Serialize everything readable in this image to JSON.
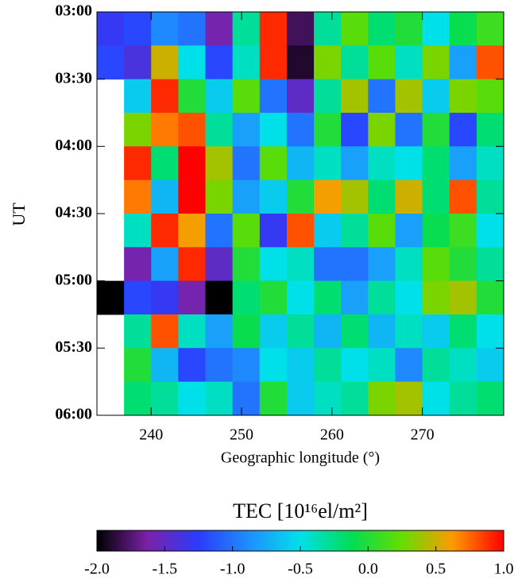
{
  "chart_data": {
    "type": "heatmap",
    "xlabel": "Geographic longitude (°)",
    "ylabel": "UT",
    "colorbar_label": "TEC [10¹⁶el/m²]",
    "xlim": [
      234,
      279
    ],
    "xticks": [
      240,
      250,
      260,
      270
    ],
    "ylim": [
      3,
      6
    ],
    "y_reversed": true,
    "yticks": [
      {
        "value": 3,
        "label": "03:00"
      },
      {
        "value": 3.5,
        "label": "03:30"
      },
      {
        "value": 4,
        "label": "04:00"
      },
      {
        "value": 4.5,
        "label": "04:30"
      },
      {
        "value": 5,
        "label": "05:00"
      },
      {
        "value": 5.5,
        "label": "05:30"
      },
      {
        "value": 6,
        "label": "06:00"
      }
    ],
    "zlim": [
      -2,
      1
    ],
    "zticks": [
      {
        "value": -2,
        "label": "-2.0"
      },
      {
        "value": -1.5,
        "label": "-1.5"
      },
      {
        "value": -1,
        "label": "-1.0"
      },
      {
        "value": -0.5,
        "label": "-0.5"
      },
      {
        "value": 0,
        "label": "0.0"
      },
      {
        "value": 0.5,
        "label": "0.5"
      },
      {
        "value": 1,
        "label": "1.0"
      }
    ],
    "colormap": [
      "#000000",
      "#7a22a8",
      "#2a3cff",
      "#1e90ff",
      "#00e0e8",
      "#00dd55",
      "#66dd00",
      "#ff9900",
      "#ff0000"
    ],
    "x": [
      235.5,
      238.5,
      241.5,
      244.5,
      247.5,
      250.5,
      253.5,
      256.5,
      259.5,
      262.5,
      265.5,
      268.5,
      271.5,
      274.5,
      277.5
    ],
    "y": [
      3.125,
      3.375,
      3.625,
      3.875,
      4.125,
      4.375,
      4.625,
      4.875,
      5.125,
      5.375,
      5.625,
      5.875
    ],
    "z": [
      [
        -1.3,
        -1.2,
        -0.9,
        -1.0,
        -1.6,
        -0.3,
        0.9,
        -1.8,
        -0.3,
        0.2,
        -0.2,
        0.0,
        -0.5,
        -0.1,
        0.1
      ],
      [
        -1.2,
        -1.4,
        0.5,
        -0.5,
        -1.2,
        -0.4,
        0.9,
        -1.9,
        0.3,
        -0.3,
        0.2,
        -0.4,
        0.3,
        -0.8,
        0.8
      ],
      [
        null,
        -0.6,
        0.9,
        0.0,
        -0.6,
        0.2,
        -1.0,
        -1.5,
        -0.3,
        0.4,
        -1.0,
        0.4,
        -0.6,
        0.3,
        0.2
      ],
      [
        null,
        0.3,
        0.7,
        0.8,
        -0.3,
        -0.8,
        -0.5,
        -1.0,
        0.0,
        -1.2,
        0.3,
        -1.0,
        0.0,
        -1.2,
        -0.2
      ],
      [
        null,
        0.9,
        -0.2,
        1.0,
        0.4,
        -1.0,
        0.2,
        -0.7,
        -0.4,
        -0.8,
        -0.4,
        -0.5,
        -0.2,
        -0.8,
        -0.4
      ],
      [
        null,
        0.7,
        -0.7,
        1.0,
        0.3,
        -0.8,
        -0.6,
        0.0,
        0.6,
        0.4,
        -0.2,
        0.5,
        -0.2,
        0.8,
        -0.3
      ],
      [
        null,
        -0.4,
        0.9,
        0.6,
        -1.0,
        0.2,
        -1.3,
        0.8,
        -0.6,
        -0.3,
        0.2,
        -0.8,
        -0.1,
        0.1,
        -0.5
      ],
      [
        null,
        -1.6,
        -0.8,
        0.9,
        -1.5,
        0.0,
        -0.5,
        -0.4,
        -1.0,
        -1.0,
        -0.8,
        -0.4,
        0.2,
        0.0,
        -0.3
      ],
      [
        -2.0,
        -1.2,
        -1.3,
        -1.6,
        -2.0,
        -0.2,
        0.0,
        -0.5,
        -0.2,
        -0.8,
        -0.3,
        -0.5,
        0.3,
        0.4,
        0.0
      ],
      [
        null,
        -0.3,
        0.8,
        -0.4,
        -0.8,
        -0.1,
        -0.6,
        -0.3,
        -0.7,
        -0.2,
        -0.7,
        -0.4,
        -0.6,
        -0.2,
        -0.5
      ],
      [
        null,
        0.0,
        -0.7,
        -1.2,
        -1.0,
        -0.9,
        -0.5,
        -0.6,
        -0.3,
        -0.5,
        -0.4,
        -0.9,
        -0.3,
        -0.4,
        -0.6
      ],
      [
        null,
        -0.2,
        -0.3,
        -0.5,
        -0.4,
        -1.0,
        0.0,
        -0.6,
        -0.4,
        -0.3,
        0.3,
        0.4,
        -0.5,
        -0.3,
        -0.2
      ]
    ]
  }
}
